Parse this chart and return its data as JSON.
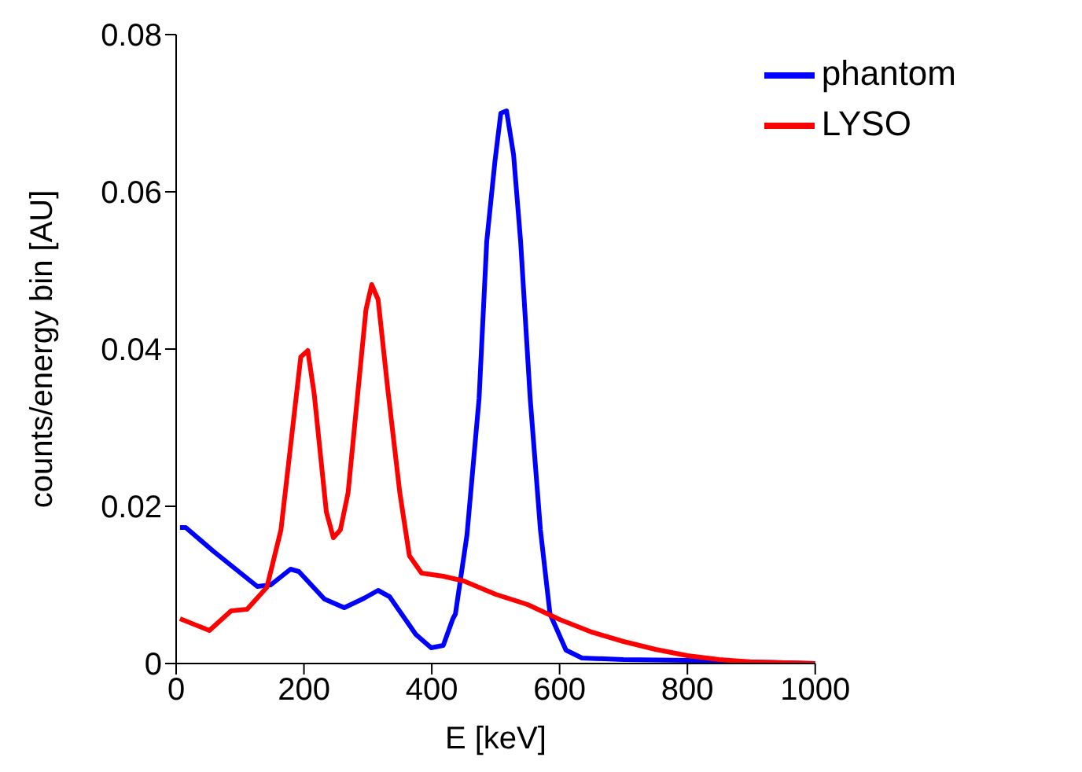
{
  "chart_data": {
    "type": "line",
    "xlabel": "E [keV]",
    "ylabel": "counts/energy bin [AU]",
    "xlim": [
      0,
      1000
    ],
    "ylim": [
      0,
      0.08
    ],
    "xticks": [
      0,
      200,
      400,
      600,
      800,
      1000
    ],
    "yticks": [
      0,
      0.02,
      0.04,
      0.06,
      0.08
    ],
    "legend": "top right",
    "marker": "none",
    "line_style": "solid",
    "series": [
      {
        "name": "phantom",
        "color": "#0000ff",
        "x": [
          6,
          15,
          58,
          127,
          148,
          179,
          192,
          232,
          263,
          294,
          316,
          334,
          375,
          399,
          418,
          433,
          437,
          455,
          474,
          486,
          499,
          508,
          517,
          528,
          539,
          554,
          570,
          585,
          610,
          635,
          700,
          800,
          1000
        ],
        "values": [
          0.0173,
          0.0173,
          0.0143,
          0.0098,
          0.01,
          0.012,
          0.0117,
          0.0082,
          0.0071,
          0.0083,
          0.0093,
          0.0085,
          0.0037,
          0.002,
          0.0023,
          0.0057,
          0.0063,
          0.0163,
          0.0337,
          0.0537,
          0.064,
          0.07,
          0.0703,
          0.0647,
          0.0537,
          0.0337,
          0.017,
          0.0063,
          0.0017,
          0.0007,
          0.0005,
          0.0004,
          0
        ]
      },
      {
        "name": "LYSO",
        "color": "#ff0000",
        "x": [
          6,
          52,
          86,
          111,
          142,
          164,
          195,
          206,
          216,
          235,
          246,
          257,
          269,
          297,
          306,
          316,
          331,
          350,
          365,
          384,
          418,
          450,
          500,
          550,
          600,
          650,
          700,
          750,
          800,
          850,
          900,
          1000
        ],
        "values": [
          0.0057,
          0.0042,
          0.0067,
          0.0069,
          0.0097,
          0.017,
          0.039,
          0.0398,
          0.0343,
          0.0193,
          0.016,
          0.017,
          0.0217,
          0.045,
          0.0482,
          0.0463,
          0.035,
          0.0217,
          0.0137,
          0.0115,
          0.0111,
          0.0105,
          0.0088,
          0.0075,
          0.0056,
          0.004,
          0.0028,
          0.0018,
          0.001,
          0.0005,
          0.0002,
          0
        ]
      }
    ]
  }
}
